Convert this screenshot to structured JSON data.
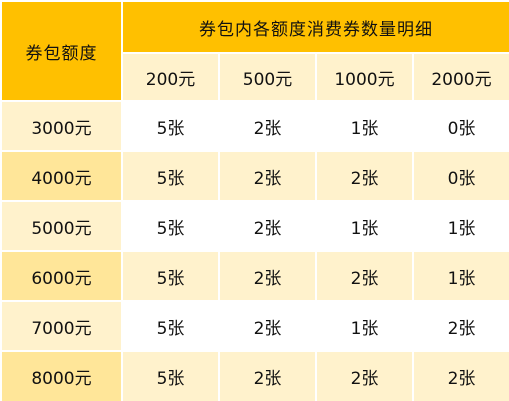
{
  "table": {
    "corner_header": "券包额度",
    "group_header": "券包内各额度消费券数量明细",
    "denominations": [
      "200元",
      "500元",
      "1000元",
      "2000元"
    ],
    "rows": [
      {
        "amount": "3000元",
        "counts": [
          "5张",
          "2张",
          "1张",
          "0张"
        ]
      },
      {
        "amount": "4000元",
        "counts": [
          "5张",
          "2张",
          "2张",
          "0张"
        ]
      },
      {
        "amount": "5000元",
        "counts": [
          "5张",
          "2张",
          "1张",
          "1张"
        ]
      },
      {
        "amount": "6000元",
        "counts": [
          "5张",
          "2张",
          "2张",
          "1张"
        ]
      },
      {
        "amount": "7000元",
        "counts": [
          "5张",
          "2张",
          "1张",
          "2张"
        ]
      },
      {
        "amount": "8000元",
        "counts": [
          "5张",
          "2张",
          "2张",
          "2张"
        ]
      }
    ]
  },
  "colors": {
    "header_accent": "#ffc000",
    "light_tint": "#fff2cc",
    "amount_tint": "#ffe699",
    "white": "#ffffff"
  }
}
